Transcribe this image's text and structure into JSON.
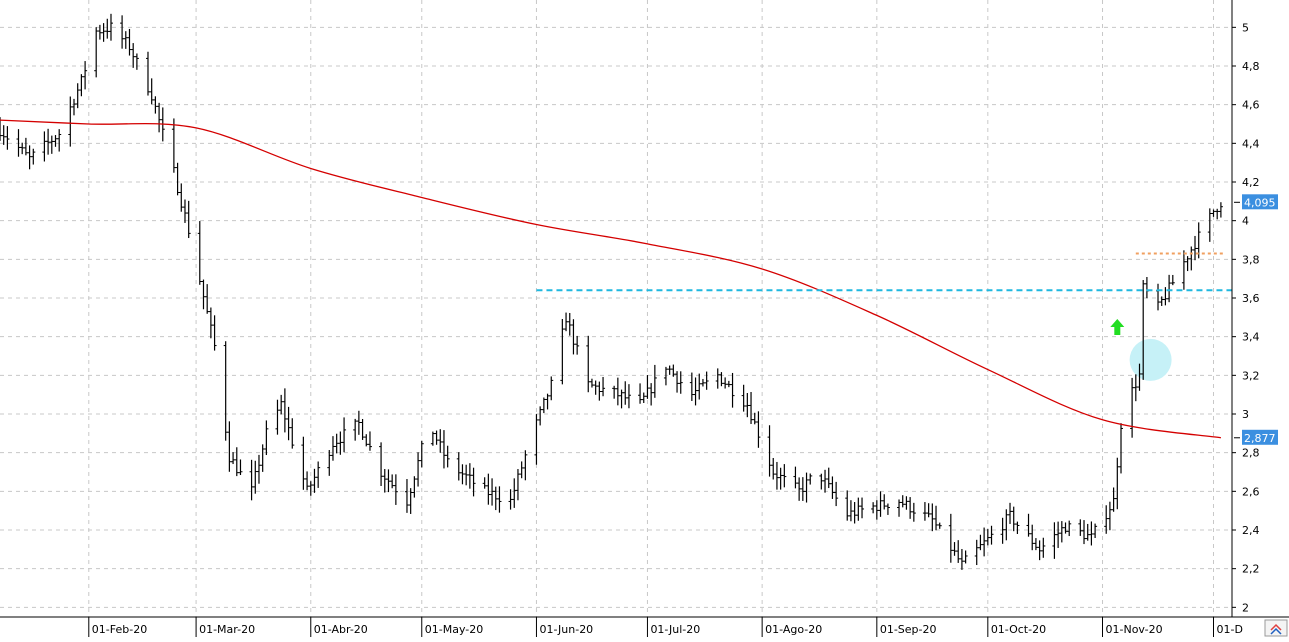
{
  "chart_data": {
    "type": "ohlc",
    "title": "",
    "xlabel": "",
    "ylabel": "",
    "grid": true,
    "ylim": [
      1.95,
      5.1
    ],
    "y_ticks": [
      "2",
      "2,2",
      "2,4",
      "2,6",
      "2,8",
      "3",
      "3,2",
      "3,4",
      "3,6",
      "3,8",
      "4",
      "4,2",
      "4,4",
      "4,6",
      "4,8",
      "5"
    ],
    "y_tick_values": [
      2,
      2.2,
      2.4,
      2.6,
      2.8,
      3,
      3.2,
      3.4,
      3.6,
      3.8,
      4,
      4.2,
      4.4,
      4.6,
      4.8,
      5
    ],
    "x_tick_labels": [
      "01-Feb-20",
      "01-Mar-20",
      "01-Abr-20",
      "01-May-20",
      "01-Jun-20",
      "01-Jul-20",
      "01-Ago-20",
      "01-Sep-20",
      "01-Oct-20",
      "01-Nov-20",
      "01-D"
    ],
    "x_tick_dates": [
      "2020-02-01",
      "2020-03-01",
      "2020-04-01",
      "2020-05-01",
      "2020-06-01",
      "2020-07-01",
      "2020-08-01",
      "2020-09-01",
      "2020-10-01",
      "2020-11-01",
      "2020-12-01"
    ],
    "x_range": [
      "2020-01-08",
      "2020-12-06"
    ],
    "price_keypoints": [
      [
        "2020-01-08",
        4.47
      ],
      [
        "2020-01-16",
        4.32
      ],
      [
        "2020-01-24",
        4.45
      ],
      [
        "2020-01-30",
        4.72
      ],
      [
        "2020-02-03",
        4.98
      ],
      [
        "2020-02-07",
        5.0
      ],
      [
        "2020-02-12",
        4.9
      ],
      [
        "2020-02-18",
        4.65
      ],
      [
        "2020-02-24",
        4.25
      ],
      [
        "2020-02-28",
        3.95
      ],
      [
        "2020-03-06",
        3.35
      ],
      [
        "2020-03-10",
        2.78
      ],
      [
        "2020-03-16",
        2.6
      ],
      [
        "2020-03-20",
        2.9
      ],
      [
        "2020-03-24",
        3.05
      ],
      [
        "2020-03-31",
        2.6
      ],
      [
        "2020-04-07",
        2.85
      ],
      [
        "2020-04-14",
        2.95
      ],
      [
        "2020-04-20",
        2.7
      ],
      [
        "2020-04-27",
        2.55
      ],
      [
        "2020-05-03",
        2.95
      ],
      [
        "2020-05-08",
        2.75
      ],
      [
        "2020-05-18",
        2.6
      ],
      [
        "2020-05-25",
        2.55
      ],
      [
        "2020-05-31",
        2.9
      ],
      [
        "2020-06-05",
        3.15
      ],
      [
        "2020-06-09",
        3.5
      ],
      [
        "2020-06-15",
        3.15
      ],
      [
        "2020-06-23",
        3.1
      ],
      [
        "2020-06-29",
        3.05
      ],
      [
        "2020-07-06",
        3.25
      ],
      [
        "2020-07-13",
        3.1
      ],
      [
        "2020-07-20",
        3.2
      ],
      [
        "2020-07-28",
        3.05
      ],
      [
        "2020-08-04",
        2.7
      ],
      [
        "2020-08-11",
        2.6
      ],
      [
        "2020-08-16",
        2.7
      ],
      [
        "2020-08-24",
        2.48
      ],
      [
        "2020-08-31",
        2.52
      ],
      [
        "2020-09-07",
        2.55
      ],
      [
        "2020-09-16",
        2.45
      ],
      [
        "2020-09-24",
        2.22
      ],
      [
        "2020-10-01",
        2.35
      ],
      [
        "2020-10-07",
        2.47
      ],
      [
        "2020-10-15",
        2.3
      ],
      [
        "2020-10-22",
        2.42
      ],
      [
        "2020-10-29",
        2.36
      ],
      [
        "2020-11-04",
        2.55
      ],
      [
        "2020-11-06",
        2.95
      ],
      [
        "2020-11-09",
        3.12
      ],
      [
        "2020-11-11",
        3.2
      ],
      [
        "2020-11-12",
        3.65
      ],
      [
        "2020-11-16",
        3.55
      ],
      [
        "2020-11-20",
        3.68
      ],
      [
        "2020-11-24",
        3.82
      ],
      [
        "2020-11-28",
        3.95
      ],
      [
        "2020-12-01",
        4.05
      ],
      [
        "2020-12-03",
        4.095
      ]
    ],
    "moving_average_points": [
      [
        "2020-01-08",
        4.52
      ],
      [
        "2020-02-01",
        4.5
      ],
      [
        "2020-03-01",
        4.48
      ],
      [
        "2020-04-01",
        4.27
      ],
      [
        "2020-05-01",
        4.12
      ],
      [
        "2020-06-01",
        3.98
      ],
      [
        "2020-07-01",
        3.88
      ],
      [
        "2020-08-01",
        3.75
      ],
      [
        "2020-09-01",
        3.51
      ],
      [
        "2020-10-01",
        3.23
      ],
      [
        "2020-11-01",
        2.97
      ],
      [
        "2020-12-03",
        2.877
      ]
    ],
    "horizontal_lines": [
      {
        "value": 3.64,
        "from": "2020-06-01",
        "to": "2020-12-06",
        "color": "#1fb8e0",
        "style": "dashed"
      },
      {
        "value": 3.83,
        "from": "2020-11-10",
        "to": "2020-12-04",
        "color": "#f0a060",
        "style": "dotted"
      }
    ],
    "last_price_label": "4,095",
    "last_price_value": 4.095,
    "ma_label": "2,877",
    "ma_value": 2.877,
    "annotations": [
      {
        "type": "arrow-up",
        "date": "2020-11-05",
        "value": 3.45,
        "color": "#22dd22"
      },
      {
        "type": "circle",
        "date": "2020-11-14",
        "value": 3.28,
        "color": "#c6f1f7"
      }
    ],
    "colors": {
      "bars": "#000000",
      "moving_average": "#d40000",
      "grid": "#c8c8c8",
      "tag_bg": "#3b8fe0"
    }
  }
}
